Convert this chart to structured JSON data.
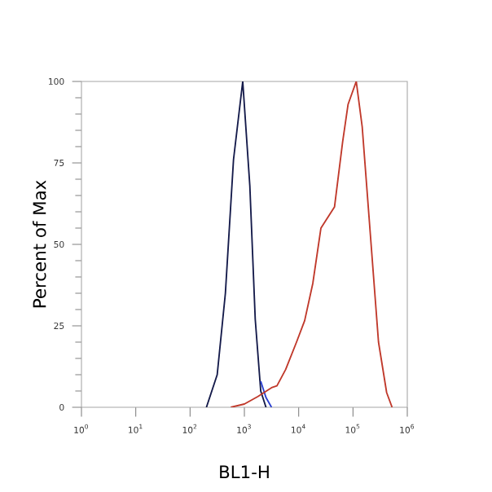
{
  "chart_data": {
    "type": "line",
    "xlabel": "BL1-H",
    "ylabel": "Percent of Max",
    "log": "x",
    "xlim": [
      1,
      1000000
    ],
    "ylim": [
      0,
      100
    ],
    "xticks": [
      {
        "value": 1,
        "label": "10$^{0}$"
      },
      {
        "value": 10,
        "label": "10$^{1}$"
      },
      {
        "value": 100,
        "label": "10$^{2}$"
      },
      {
        "value": 1000,
        "label": "10$^{3}$"
      },
      {
        "value": 10000,
        "label": "10$^{4}$"
      },
      {
        "value": 100000,
        "label": "10$^{5}$"
      },
      {
        "value": 1000000,
        "label": "10$^{6}$"
      }
    ],
    "yticks": [
      0,
      25,
      50,
      75,
      100
    ],
    "grid": false,
    "marker": "none",
    "line_style": "solid",
    "series": [
      {
        "color": "#141a4a",
        "x": [
          200,
          316,
          447,
          631,
          933,
          1260,
          1585,
          2000,
          2500
        ],
        "values": [
          0,
          10,
          35,
          76,
          100,
          68,
          27,
          5,
          0
        ]
      },
      {
        "color": "#2a3fd0",
        "x": [
          2000,
          2500,
          3162
        ],
        "values": [
          8,
          3,
          0
        ]
      },
      {
        "color": "#c0392b",
        "x": [
          562,
          1000,
          1778,
          3162,
          3981,
          5754,
          9120,
          12882,
          18197,
          25704,
          45709,
          64565,
          81283,
          114815,
          147911,
          208930,
          295121,
          416869,
          524807
        ],
        "values": [
          0,
          1,
          3.3,
          6,
          6.6,
          11.6,
          20,
          26.6,
          38,
          55,
          61.5,
          81.5,
          93,
          100,
          86,
          53,
          20,
          4.5,
          0
        ]
      }
    ]
  }
}
